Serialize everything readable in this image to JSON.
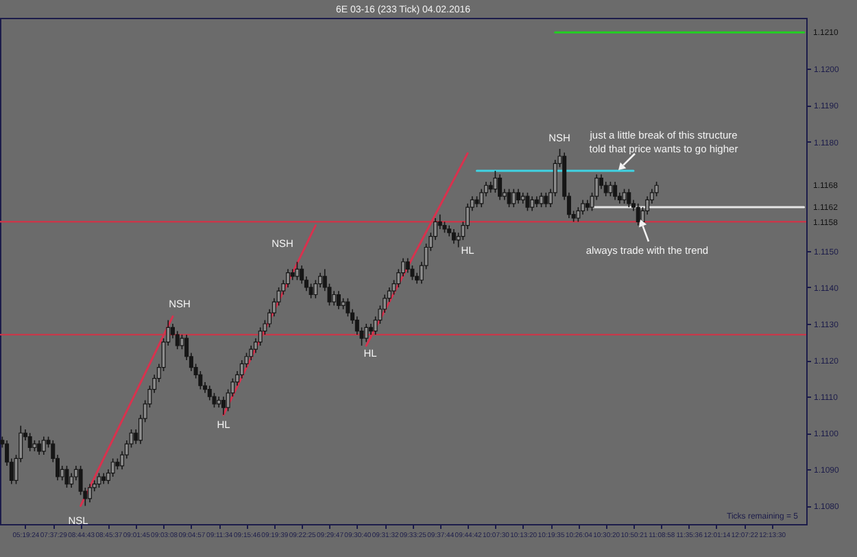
{
  "chart_data": {
    "type": "candlestick",
    "title": "6E 03-16 (233 Tick)  04.02.2016",
    "color": "#161616",
    "categories": [
      null,
      null,
      null,
      null,
      null,
      "05:19:24",
      null,
      null,
      null,
      null,
      null,
      "07:37:29",
      null,
      null,
      null,
      null,
      null,
      "08:44:43",
      null,
      null,
      null,
      null,
      null,
      "08:45:37",
      null,
      null,
      null,
      null,
      null,
      "09:01:45",
      null,
      null,
      null,
      null,
      null,
      "09:03:08",
      null,
      null,
      null,
      null,
      null,
      "09:04:57",
      null,
      null,
      null,
      null,
      null,
      "09:11:34",
      null,
      null,
      null,
      null,
      null,
      "09:15:46",
      null,
      null,
      null,
      null,
      null,
      "09:19:39",
      null,
      null,
      null,
      null,
      null,
      "09:22:25",
      null,
      null,
      null,
      null,
      null,
      "09:29:47",
      null,
      null,
      null,
      null,
      null,
      "09:30:40",
      null,
      null,
      null,
      null,
      null,
      "09:31:32",
      null,
      null,
      null,
      null,
      null,
      "09:33:25",
      null,
      null,
      null,
      null,
      null,
      "09:37:44",
      null,
      null,
      null,
      null,
      null,
      "09:44:42",
      null,
      null,
      null,
      null,
      null,
      "10:07:30",
      null,
      null,
      null,
      null,
      null,
      "10:13:20",
      null,
      null,
      null,
      null,
      null,
      "10:19:35",
      null,
      null,
      null,
      null,
      null,
      "10:26:04",
      null,
      null,
      null,
      null,
      null,
      "10:30:20",
      null,
      null,
      null,
      null,
      null,
      "10:50:21",
      null,
      null,
      null,
      null,
      null,
      "11:08:58",
      null,
      null,
      null,
      null,
      null,
      "11:35:36",
      null,
      null,
      null,
      null,
      null,
      "12:01:14",
      null,
      null,
      null,
      null,
      null,
      "12:07:22",
      null,
      null,
      null,
      null,
      null,
      "12:13:30",
      null,
      null,
      null,
      null,
      null,
      null,
      null
    ],
    "ohlc": [
      [
        1.1098,
        1.1099,
        1.1096,
        1.1097
      ],
      [
        1.1097,
        1.1098,
        1.1091,
        1.1092
      ],
      [
        1.1092,
        1.1093,
        1.1086,
        1.1087
      ],
      [
        1.1087,
        1.1094,
        1.1086,
        1.1093
      ],
      [
        1.1093,
        1.1102,
        1.1092,
        1.11
      ],
      [
        1.11,
        1.1101,
        1.1098,
        1.1099
      ],
      [
        1.1099,
        1.11,
        1.1095,
        1.1096
      ],
      [
        1.1096,
        1.1098,
        1.1095,
        1.1097
      ],
      [
        1.1097,
        1.1098,
        1.1094,
        1.1095
      ],
      [
        1.1095,
        1.1099,
        1.1094,
        1.1098
      ],
      [
        1.1098,
        1.1099,
        1.1096,
        1.1097
      ],
      [
        1.1097,
        1.1098,
        1.1092,
        1.1093
      ],
      [
        1.1093,
        1.1094,
        1.1087,
        1.1088
      ],
      [
        1.1088,
        1.1091,
        1.1087,
        1.109
      ],
      [
        1.109,
        1.1091,
        1.1085,
        1.1086
      ],
      [
        1.1086,
        1.1089,
        1.1085,
        1.1088
      ],
      [
        1.1088,
        1.1091,
        1.1087,
        1.109
      ],
      [
        1.109,
        1.1091,
        1.1083,
        1.1084
      ],
      [
        1.1084,
        1.1085,
        1.108,
        1.1082
      ],
      [
        1.1082,
        1.1086,
        1.1081,
        1.1085
      ],
      [
        1.1085,
        1.1087,
        1.1084,
        1.1086
      ],
      [
        1.1086,
        1.1089,
        1.1085,
        1.1088
      ],
      [
        1.1088,
        1.1089,
        1.1086,
        1.1087
      ],
      [
        1.1087,
        1.109,
        1.1086,
        1.1089
      ],
      [
        1.1089,
        1.1093,
        1.1088,
        1.1092
      ],
      [
        1.1092,
        1.1093,
        1.109,
        1.1091
      ],
      [
        1.1091,
        1.1095,
        1.109,
        1.1094
      ],
      [
        1.1094,
        1.1098,
        1.1093,
        1.1097
      ],
      [
        1.1097,
        1.1101,
        1.1096,
        1.11
      ],
      [
        1.11,
        1.1101,
        1.1097,
        1.1098
      ],
      [
        1.1098,
        1.1105,
        1.1097,
        1.1104
      ],
      [
        1.1104,
        1.1109,
        1.1103,
        1.1108
      ],
      [
        1.1108,
        1.1113,
        1.1107,
        1.1112
      ],
      [
        1.1112,
        1.1116,
        1.1111,
        1.1115
      ],
      [
        1.1115,
        1.1119,
        1.1114,
        1.1118
      ],
      [
        1.1118,
        1.1126,
        1.1117,
        1.1125
      ],
      [
        1.1125,
        1.1131,
        1.1124,
        1.1129
      ],
      [
        1.1129,
        1.113,
        1.1126,
        1.1127
      ],
      [
        1.1127,
        1.1128,
        1.1123,
        1.1124
      ],
      [
        1.1124,
        1.1127,
        1.1123,
        1.1126
      ],
      [
        1.1126,
        1.1127,
        1.112,
        1.1121
      ],
      [
        1.1121,
        1.1122,
        1.1117,
        1.1118
      ],
      [
        1.1118,
        1.1119,
        1.1115,
        1.1116
      ],
      [
        1.1116,
        1.1117,
        1.1112,
        1.1113
      ],
      [
        1.1113,
        1.1114,
        1.1111,
        1.1112
      ],
      [
        1.1112,
        1.1113,
        1.1109,
        1.111
      ],
      [
        1.111,
        1.1111,
        1.1107,
        1.1108
      ],
      [
        1.1108,
        1.111,
        1.1107,
        1.1109
      ],
      [
        1.1109,
        1.111,
        1.1105,
        1.1107
      ],
      [
        1.1107,
        1.1112,
        1.1106,
        1.1111
      ],
      [
        1.1111,
        1.1115,
        1.111,
        1.1114
      ],
      [
        1.1114,
        1.1117,
        1.1113,
        1.1116
      ],
      [
        1.1116,
        1.112,
        1.1115,
        1.1119
      ],
      [
        1.1119,
        1.1122,
        1.1118,
        1.1121
      ],
      [
        1.1121,
        1.1124,
        1.112,
        1.1123
      ],
      [
        1.1123,
        1.1126,
        1.1122,
        1.1125
      ],
      [
        1.1125,
        1.1129,
        1.1124,
        1.1128
      ],
      [
        1.1128,
        1.1131,
        1.1127,
        1.113
      ],
      [
        1.113,
        1.1134,
        1.1129,
        1.1133
      ],
      [
        1.1133,
        1.1137,
        1.1132,
        1.1136
      ],
      [
        1.1136,
        1.114,
        1.1135,
        1.1139
      ],
      [
        1.1139,
        1.1142,
        1.1138,
        1.1141
      ],
      [
        1.1141,
        1.1145,
        1.114,
        1.1144
      ],
      [
        1.1144,
        1.1145,
        1.1142,
        1.1143
      ],
      [
        1.1143,
        1.1147,
        1.1142,
        1.1145
      ],
      [
        1.1145,
        1.1146,
        1.1141,
        1.1142
      ],
      [
        1.1142,
        1.1143,
        1.1139,
        1.114
      ],
      [
        1.114,
        1.1141,
        1.1137,
        1.1138
      ],
      [
        1.1138,
        1.1142,
        1.1137,
        1.1141
      ],
      [
        1.1141,
        1.1144,
        1.114,
        1.1143
      ],
      [
        1.1143,
        1.1145,
        1.1139,
        1.114
      ],
      [
        1.114,
        1.1141,
        1.1135,
        1.1136
      ],
      [
        1.1136,
        1.1139,
        1.1135,
        1.1138
      ],
      [
        1.1138,
        1.1139,
        1.1134,
        1.1135
      ],
      [
        1.1135,
        1.1137,
        1.1134,
        1.1136
      ],
      [
        1.1136,
        1.1137,
        1.1132,
        1.1133
      ],
      [
        1.1133,
        1.1134,
        1.113,
        1.1131
      ],
      [
        1.1131,
        1.1132,
        1.1127,
        1.1128
      ],
      [
        1.1128,
        1.1129,
        1.1124,
        1.1126
      ],
      [
        1.1126,
        1.113,
        1.1125,
        1.1129
      ],
      [
        1.1129,
        1.113,
        1.1127,
        1.1128
      ],
      [
        1.1128,
        1.1132,
        1.1127,
        1.1131
      ],
      [
        1.1131,
        1.1135,
        1.113,
        1.1134
      ],
      [
        1.1134,
        1.1138,
        1.1133,
        1.1137
      ],
      [
        1.1137,
        1.114,
        1.1136,
        1.1139
      ],
      [
        1.1139,
        1.1142,
        1.1138,
        1.1141
      ],
      [
        1.1141,
        1.1145,
        1.114,
        1.1144
      ],
      [
        1.1144,
        1.1148,
        1.1143,
        1.1147
      ],
      [
        1.1147,
        1.1148,
        1.1144,
        1.1145
      ],
      [
        1.1145,
        1.1146,
        1.1142,
        1.1143
      ],
      [
        1.1143,
        1.1144,
        1.1141,
        1.1142
      ],
      [
        1.1142,
        1.1147,
        1.1141,
        1.1146
      ],
      [
        1.1146,
        1.1152,
        1.1145,
        1.1151
      ],
      [
        1.1151,
        1.1155,
        1.115,
        1.1154
      ],
      [
        1.1154,
        1.1159,
        1.1153,
        1.1158
      ],
      [
        1.1158,
        1.116,
        1.1156,
        1.1157
      ],
      [
        1.1157,
        1.1158,
        1.1155,
        1.1156
      ],
      [
        1.1156,
        1.1157,
        1.1154,
        1.1155
      ],
      [
        1.1155,
        1.1156,
        1.1152,
        1.1153
      ],
      [
        1.1153,
        1.1155,
        1.1151,
        1.1154
      ],
      [
        1.1154,
        1.1158,
        1.1153,
        1.1157
      ],
      [
        1.1157,
        1.1163,
        1.1156,
        1.1162
      ],
      [
        1.1162,
        1.1165,
        1.1161,
        1.1164
      ],
      [
        1.1164,
        1.1165,
        1.1162,
        1.1163
      ],
      [
        1.1163,
        1.1167,
        1.1162,
        1.1166
      ],
      [
        1.1166,
        1.1169,
        1.1165,
        1.1168
      ],
      [
        1.1168,
        1.1169,
        1.1166,
        1.1167
      ],
      [
        1.1167,
        1.1172,
        1.1166,
        1.117
      ],
      [
        1.117,
        1.1171,
        1.1164,
        1.1165
      ],
      [
        1.1165,
        1.1167,
        1.1164,
        1.1166
      ],
      [
        1.1166,
        1.1167,
        1.1162,
        1.1163
      ],
      [
        1.1163,
        1.1167,
        1.1162,
        1.1166
      ],
      [
        1.1166,
        1.1167,
        1.1163,
        1.1164
      ],
      [
        1.1164,
        1.1166,
        1.1163,
        1.1165
      ],
      [
        1.1165,
        1.1166,
        1.1161,
        1.1162
      ],
      [
        1.1162,
        1.1165,
        1.1161,
        1.1164
      ],
      [
        1.1164,
        1.1165,
        1.1162,
        1.1163
      ],
      [
        1.1163,
        1.1166,
        1.1162,
        1.1165
      ],
      [
        1.1165,
        1.1166,
        1.1162,
        1.1163
      ],
      [
        1.1163,
        1.1167,
        1.1162,
        1.1166
      ],
      [
        1.1166,
        1.1175,
        1.1165,
        1.1174
      ],
      [
        1.1174,
        1.1178,
        1.1173,
        1.1176
      ],
      [
        1.1176,
        1.1177,
        1.1164,
        1.1165
      ],
      [
        1.1165,
        1.1166,
        1.1159,
        1.116
      ],
      [
        1.116,
        1.1161,
        1.1158,
        1.1159
      ],
      [
        1.1159,
        1.1162,
        1.1158,
        1.1161
      ],
      [
        1.1161,
        1.1164,
        1.116,
        1.1163
      ],
      [
        1.1163,
        1.1164,
        1.1161,
        1.1162
      ],
      [
        1.1162,
        1.1166,
        1.1161,
        1.1165
      ],
      [
        1.1165,
        1.1171,
        1.1164,
        1.117
      ],
      [
        1.117,
        1.1171,
        1.1167,
        1.1168
      ],
      [
        1.1168,
        1.1169,
        1.1165,
        1.1166
      ],
      [
        1.1166,
        1.1169,
        1.1165,
        1.1168
      ],
      [
        1.1168,
        1.1169,
        1.1164,
        1.1165
      ],
      [
        1.1165,
        1.1166,
        1.1163,
        1.1164
      ],
      [
        1.1164,
        1.1167,
        1.1163,
        1.1166
      ],
      [
        1.1166,
        1.1167,
        1.1162,
        1.1163
      ],
      [
        1.1163,
        1.1164,
        1.1161,
        1.1162
      ],
      [
        1.1162,
        1.1163,
        1.1157,
        1.1158
      ],
      [
        1.1158,
        1.1162,
        1.1157,
        1.1161
      ],
      [
        1.1161,
        1.1165,
        1.116,
        1.1164
      ],
      [
        1.1164,
        1.1167,
        1.1163,
        1.1166
      ],
      [
        1.1166,
        1.1169,
        1.1165,
        1.1168
      ],
      null,
      null,
      null,
      null,
      null,
      null,
      null,
      null,
      null,
      null,
      null,
      null,
      null,
      null,
      null,
      null,
      null,
      null,
      null,
      null,
      null,
      null,
      null,
      null,
      null,
      null,
      null,
      null,
      null,
      null,
      null,
      null
    ],
    "series": [
      {
        "type": "line",
        "color": "#d8324e",
        "values": [
          null,
          null,
          null,
          null,
          null,
          null,
          null,
          null,
          null,
          null,
          null,
          null,
          null,
          null,
          null,
          null,
          null,
          1.108,
          1.10826,
          1.10852,
          1.10878,
          1.10904,
          1.1093,
          1.10956,
          1.10982,
          1.11008,
          1.11034,
          1.1106,
          1.11086,
          1.11112,
          1.11138,
          1.11164,
          1.1119,
          1.11216,
          1.11242,
          1.11268,
          1.11294,
          1.1132,
          null,
          null,
          null,
          null,
          null,
          null,
          null,
          null,
          null,
          null,
          null,
          null,
          null,
          null,
          null,
          null,
          null,
          null,
          null,
          null,
          null,
          null,
          null,
          null,
          null,
          null,
          null,
          null,
          null,
          null,
          null,
          null,
          null,
          null,
          null,
          null,
          null,
          null,
          null,
          null,
          null,
          null,
          null,
          null,
          null,
          null,
          null,
          null,
          null,
          null,
          null,
          null,
          null,
          null,
          null,
          null,
          null,
          null,
          null,
          null,
          null,
          null,
          null,
          null,
          null,
          null,
          null,
          null,
          null,
          null,
          null,
          null,
          null,
          null,
          null,
          null,
          null,
          null,
          null,
          null,
          null,
          null,
          null,
          null,
          null,
          null,
          null,
          null,
          null,
          null,
          null,
          null,
          null,
          null,
          null,
          null,
          null,
          null,
          null,
          null,
          null,
          null,
          null,
          null,
          null,
          null,
          null,
          null,
          null,
          null,
          null,
          null,
          null,
          null,
          null,
          null,
          null,
          null,
          null,
          null,
          null,
          null,
          null,
          null,
          null,
          null,
          null,
          null,
          null,
          null,
          null,
          null,
          null,
          null,
          null,
          null,
          null
        ]
      },
      {
        "type": "line",
        "color": "#d8324e",
        "values": [
          null,
          null,
          null,
          null,
          null,
          null,
          null,
          null,
          null,
          null,
          null,
          null,
          null,
          null,
          null,
          null,
          null,
          null,
          null,
          null,
          null,
          null,
          null,
          null,
          null,
          null,
          null,
          null,
          null,
          null,
          null,
          null,
          null,
          null,
          null,
          null,
          null,
          null,
          null,
          null,
          null,
          null,
          null,
          null,
          null,
          null,
          null,
          null,
          1.1105,
          1.11076,
          1.11102,
          1.11128,
          1.11154,
          1.1118,
          1.11206,
          1.11232,
          1.11258,
          1.11284,
          1.1131,
          1.11336,
          1.11362,
          1.11388,
          1.11414,
          1.1144,
          1.11466,
          1.11492,
          1.11518,
          1.11544,
          1.1157,
          null,
          null,
          null,
          null,
          null,
          null,
          null,
          null,
          null,
          null,
          null,
          null,
          null,
          null,
          null,
          null,
          null,
          null,
          null,
          null,
          null,
          null,
          null,
          null,
          null,
          null,
          null,
          null,
          null,
          null,
          null,
          null,
          null,
          null,
          null,
          null,
          null,
          null,
          null,
          null,
          null,
          null,
          null,
          null,
          null,
          null,
          null,
          null,
          null,
          null,
          null,
          null,
          null,
          null,
          null,
          null,
          null,
          null,
          null,
          null,
          null,
          null,
          null,
          null,
          null,
          null,
          null,
          null,
          null,
          null,
          null,
          null,
          null,
          null,
          null,
          null,
          null,
          null,
          null,
          null,
          null,
          null,
          null,
          null,
          null,
          null,
          null,
          null,
          null,
          null,
          null,
          null,
          null,
          null,
          null,
          null,
          null,
          null,
          null,
          null,
          null,
          null,
          null,
          null,
          null,
          null
        ]
      },
      {
        "type": "line",
        "color": "#d8324e",
        "values": [
          null,
          null,
          null,
          null,
          null,
          null,
          null,
          null,
          null,
          null,
          null,
          null,
          null,
          null,
          null,
          null,
          null,
          null,
          null,
          null,
          null,
          null,
          null,
          null,
          null,
          null,
          null,
          null,
          null,
          null,
          null,
          null,
          null,
          null,
          null,
          null,
          null,
          null,
          null,
          null,
          null,
          null,
          null,
          null,
          null,
          null,
          null,
          null,
          null,
          null,
          null,
          null,
          null,
          null,
          null,
          null,
          null,
          null,
          null,
          null,
          null,
          null,
          null,
          null,
          null,
          null,
          null,
          null,
          null,
          null,
          null,
          null,
          null,
          null,
          null,
          null,
          null,
          null,
          null,
          1.1124,
          1.11264,
          1.11288,
          1.11312,
          1.11336,
          1.1136,
          1.11384,
          1.11408,
          1.11432,
          1.11456,
          1.1148,
          1.11504,
          1.11528,
          1.11552,
          1.11576,
          1.116,
          1.11624,
          1.11648,
          1.11672,
          1.11696,
          1.1172,
          1.11744,
          1.11768,
          null,
          null,
          null,
          null,
          null,
          null,
          null,
          null,
          null,
          null,
          null,
          null,
          null,
          null,
          null,
          null,
          null,
          null,
          null,
          null,
          null,
          null,
          null,
          null,
          null,
          null,
          null,
          null,
          null,
          null,
          null,
          null,
          null,
          null,
          null,
          null,
          null,
          null,
          null,
          null,
          null,
          null,
          null,
          null,
          null,
          null,
          null,
          null,
          null,
          null,
          null,
          null,
          null,
          null,
          null,
          null,
          null,
          null,
          null,
          null,
          null,
          null,
          null,
          null,
          null,
          null,
          null,
          null,
          null,
          null,
          null,
          null,
          null
        ]
      },
      {
        "type": "line",
        "color": "#3fd4e4",
        "values": [
          null,
          null,
          null,
          null,
          null,
          null,
          null,
          null,
          null,
          null,
          null,
          null,
          null,
          null,
          null,
          null,
          null,
          null,
          null,
          null,
          null,
          null,
          null,
          null,
          null,
          null,
          null,
          null,
          null,
          null,
          null,
          null,
          null,
          null,
          null,
          null,
          null,
          null,
          null,
          null,
          null,
          null,
          null,
          null,
          null,
          null,
          null,
          null,
          null,
          null,
          null,
          null,
          null,
          null,
          null,
          null,
          null,
          null,
          null,
          null,
          null,
          null,
          null,
          null,
          null,
          null,
          null,
          null,
          null,
          null,
          null,
          null,
          null,
          null,
          null,
          null,
          null,
          null,
          null,
          null,
          null,
          null,
          null,
          null,
          null,
          null,
          null,
          null,
          null,
          null,
          null,
          null,
          null,
          null,
          null,
          null,
          null,
          null,
          null,
          null,
          null,
          null,
          null,
          1.1172,
          1.1172,
          1.1172,
          1.1172,
          1.1172,
          1.1172,
          1.1172,
          1.1172,
          1.1172,
          1.1172,
          1.1172,
          1.1172,
          1.1172,
          1.1172,
          1.1172,
          1.1172,
          1.1172,
          1.1172,
          1.1172,
          1.1172,
          1.1172,
          1.1172,
          1.1172,
          1.1172,
          1.1172,
          1.1172,
          1.1172,
          1.1172,
          1.1172,
          1.1172,
          1.1172,
          1.1172,
          1.1172,
          1.1172,
          1.1172,
          null,
          null,
          null,
          null,
          null,
          null,
          null,
          null,
          null,
          null,
          null,
          null,
          null,
          null,
          null,
          null,
          null,
          null,
          null,
          null,
          null,
          null,
          null,
          null,
          null,
          null,
          null,
          null,
          null,
          null,
          null,
          null,
          null,
          null,
          null,
          null,
          null
        ]
      },
      {
        "type": "line",
        "color": "#22d022",
        "values": [
          null,
          null,
          null,
          null,
          null,
          null,
          null,
          null,
          null,
          null,
          null,
          null,
          null,
          null,
          null,
          null,
          null,
          null,
          null,
          null,
          null,
          null,
          null,
          null,
          null,
          null,
          null,
          null,
          null,
          null,
          null,
          null,
          null,
          null,
          null,
          null,
          null,
          null,
          null,
          null,
          null,
          null,
          null,
          null,
          null,
          null,
          null,
          null,
          null,
          null,
          null,
          null,
          null,
          null,
          null,
          null,
          null,
          null,
          null,
          null,
          null,
          null,
          null,
          null,
          null,
          null,
          null,
          null,
          null,
          null,
          null,
          null,
          null,
          null,
          null,
          null,
          null,
          null,
          null,
          null,
          null,
          null,
          null,
          null,
          null,
          null,
          null,
          null,
          null,
          null,
          null,
          null,
          null,
          null,
          null,
          null,
          null,
          null,
          null,
          null,
          null,
          null,
          null,
          null,
          null,
          null,
          null,
          null,
          null,
          null,
          null,
          null,
          null,
          null,
          null,
          null,
          null,
          null,
          null,
          null,
          1.121,
          1.121,
          1.121,
          1.121,
          1.121,
          1.121,
          1.121,
          1.121,
          1.121,
          1.121,
          1.121,
          1.121,
          1.121,
          1.121,
          1.121,
          1.121,
          1.121,
          1.121,
          1.121,
          1.121,
          1.121,
          1.121,
          1.121,
          1.121,
          1.121,
          1.121,
          1.121,
          1.121,
          1.121,
          1.121,
          1.121,
          1.121,
          1.121,
          1.121,
          1.121,
          1.121,
          1.121,
          1.121,
          1.121,
          1.121,
          1.121,
          1.121,
          1.121,
          1.121,
          1.121,
          1.121,
          1.121,
          1.121,
          1.121,
          1.121,
          1.121,
          1.121,
          1.121,
          1.121,
          1.121
        ]
      },
      {
        "type": "line",
        "color": "#e6e6e6",
        "values": [
          null,
          null,
          null,
          null,
          null,
          null,
          null,
          null,
          null,
          null,
          null,
          null,
          null,
          null,
          null,
          null,
          null,
          null,
          null,
          null,
          null,
          null,
          null,
          null,
          null,
          null,
          null,
          null,
          null,
          null,
          null,
          null,
          null,
          null,
          null,
          null,
          null,
          null,
          null,
          null,
          null,
          null,
          null,
          null,
          null,
          null,
          null,
          null,
          null,
          null,
          null,
          null,
          null,
          null,
          null,
          null,
          null,
          null,
          null,
          null,
          null,
          null,
          null,
          null,
          null,
          null,
          null,
          null,
          null,
          null,
          null,
          null,
          null,
          null,
          null,
          null,
          null,
          null,
          null,
          null,
          null,
          null,
          null,
          null,
          null,
          null,
          null,
          null,
          null,
          null,
          null,
          null,
          null,
          null,
          null,
          null,
          null,
          null,
          null,
          null,
          null,
          null,
          null,
          null,
          null,
          null,
          null,
          null,
          null,
          null,
          null,
          null,
          null,
          null,
          null,
          null,
          null,
          null,
          null,
          null,
          null,
          null,
          null,
          null,
          null,
          null,
          null,
          null,
          1.1162,
          1.1162,
          1.1162,
          1.1162,
          1.1162,
          1.1162,
          1.1162,
          1.1162,
          1.1162,
          1.1162,
          1.1162,
          1.1162,
          1.1162,
          1.1162,
          1.1162,
          1.1162,
          1.1162,
          1.1162,
          1.1162,
          1.1162,
          1.1162,
          1.1162,
          1.1162,
          1.1162,
          1.1162,
          1.1162,
          1.1162,
          1.1162,
          1.1162,
          1.1162,
          1.1162,
          1.1162,
          1.1162,
          1.1162,
          1.1162,
          1.1162,
          1.1162,
          1.1162,
          1.1162,
          1.1162,
          1.1162,
          1.1162,
          1.1162,
          1.1162,
          1.1162,
          1.1162,
          1.1162
        ]
      }
    ],
    "ref_lines": [
      {
        "axis": "y",
        "value": 1.1158,
        "color": "#c8384a"
      },
      {
        "axis": "y",
        "value": 1.1127,
        "color": "#c8384a"
      }
    ],
    "ylim": [
      1.1075,
      1.1214
    ],
    "yticks": [
      {
        "value": 1.108,
        "label": "1.1080"
      },
      {
        "value": 1.109,
        "label": "1.1090"
      },
      {
        "value": 1.11,
        "label": "1.1100"
      },
      {
        "value": 1.111,
        "label": "1.1110"
      },
      {
        "value": 1.112,
        "label": "1.1120"
      },
      {
        "value": 1.113,
        "label": "1.1130"
      },
      {
        "value": 1.114,
        "label": "1.1140"
      },
      {
        "value": 1.115,
        "label": "1.1150"
      },
      {
        "value": 1.118,
        "label": "1.1180"
      },
      {
        "value": 1.119,
        "label": "1.1190"
      },
      {
        "value": 1.12,
        "label": "1.1200"
      }
    ],
    "annotations": [
      "NSL",
      "NSH",
      "HL",
      "NSH",
      "HL",
      "HL",
      "NSH",
      "just a little break of this structure\ntold that price wants to go higher",
      "always trade with the trend",
      "1.1210",
      "1.1168",
      "1.1162",
      "1.1158",
      "Ticks remaining = 5"
    ]
  }
}
